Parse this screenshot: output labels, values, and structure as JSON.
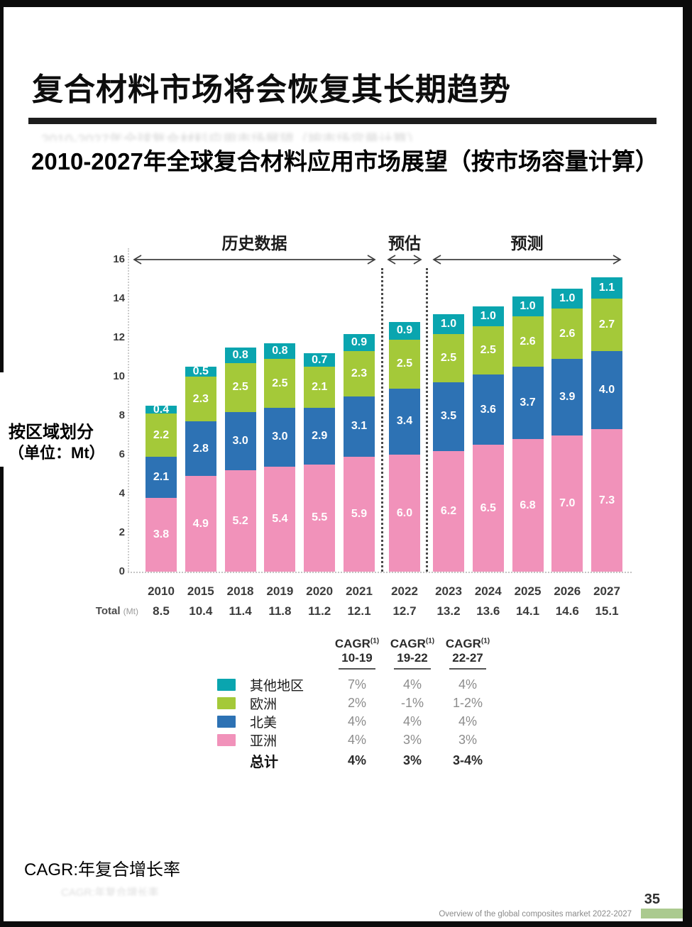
{
  "header": {
    "title": "复合材料市场将会恢复其长期趋势",
    "subtitle": "2010-2027年全球复合材料应用市场展望（按市场容量计算）"
  },
  "chart_data": {
    "type": "bar",
    "stacked": true,
    "title": "2010-2027年全球复合材料应用市场展望（按市场容量计算）",
    "ylabel": "按区域划分（单位：Mt）",
    "unit_caption": {
      "line1": "按区域划分",
      "line2": "（单位：Mt）"
    },
    "ylim": [
      0,
      16
    ],
    "yticks": [
      0,
      2,
      4,
      6,
      8,
      10,
      12,
      14,
      16
    ],
    "grid": false,
    "categories": [
      "2010",
      "2015",
      "2018",
      "2019",
      "2020",
      "2021",
      "2022",
      "2023",
      "2024",
      "2025",
      "2026",
      "2027"
    ],
    "series": [
      {
        "name": "亚洲",
        "color": "#f192ba",
        "values": [
          3.8,
          4.9,
          5.2,
          5.4,
          5.5,
          5.9,
          6.0,
          6.2,
          6.5,
          6.8,
          7.0,
          7.3
        ]
      },
      {
        "name": "北美",
        "color": "#2d72b4",
        "values": [
          2.1,
          2.8,
          3.0,
          3.0,
          2.9,
          3.1,
          3.4,
          3.5,
          3.6,
          3.7,
          3.9,
          4.0
        ]
      },
      {
        "name": "欧洲",
        "color": "#a4c939",
        "values": [
          2.2,
          2.3,
          2.5,
          2.5,
          2.1,
          2.3,
          2.5,
          2.5,
          2.5,
          2.6,
          2.6,
          2.7
        ]
      },
      {
        "name": "其他地区",
        "color": "#0aa5af",
        "values": [
          0.4,
          0.5,
          0.8,
          0.8,
          0.7,
          0.9,
          0.9,
          1.0,
          1.0,
          1.0,
          1.0,
          1.1
        ]
      }
    ],
    "totals_label": {
      "text": "Total",
      "unit": "(Mt)"
    },
    "totals": [
      "8.5",
      "10.4",
      "11.4",
      "11.8",
      "11.2",
      "12.1",
      "12.7",
      "13.2",
      "13.6",
      "14.1",
      "14.6",
      "15.1"
    ],
    "sections": [
      {
        "label": "历史数据",
        "from": 0,
        "to": 5
      },
      {
        "label": "预估",
        "from": 6,
        "to": 6
      },
      {
        "label": "预测",
        "from": 7,
        "to": 11
      }
    ],
    "legend": [
      "其他地区",
      "欧洲",
      "北美",
      "亚洲"
    ],
    "legend_position": "bottom-left"
  },
  "cagr_table": {
    "headers": [
      {
        "prefix": "CAGR",
        "sup": "(1)",
        "range": "10-19"
      },
      {
        "prefix": "CAGR",
        "sup": "(1)",
        "range": "19-22"
      },
      {
        "prefix": "CAGR",
        "sup": "(1)",
        "range": "22-27"
      }
    ],
    "rows": [
      {
        "swatch": "#0aa5af",
        "label": "其他地区",
        "values": [
          "7%",
          "4%",
          "4%"
        ],
        "bold": false
      },
      {
        "swatch": "#a4c939",
        "label": "欧洲",
        "values": [
          "2%",
          "-1%",
          "1-2%"
        ],
        "bold": false
      },
      {
        "swatch": "#2d72b4",
        "label": "北美",
        "values": [
          "4%",
          "4%",
          "4%"
        ],
        "bold": false
      },
      {
        "swatch": "#f192ba",
        "label": "亚洲",
        "values": [
          "4%",
          "3%",
          "3%"
        ],
        "bold": false
      },
      {
        "swatch": null,
        "label": "总计",
        "values": [
          "4%",
          "3%",
          "3-4%"
        ],
        "bold": true
      }
    ]
  },
  "footnote": "CAGR:年复合增长率",
  "footer": {
    "page": "35",
    "source": "Overview of the global composites market 2022-2027",
    "accent_color": "#abca8f"
  }
}
